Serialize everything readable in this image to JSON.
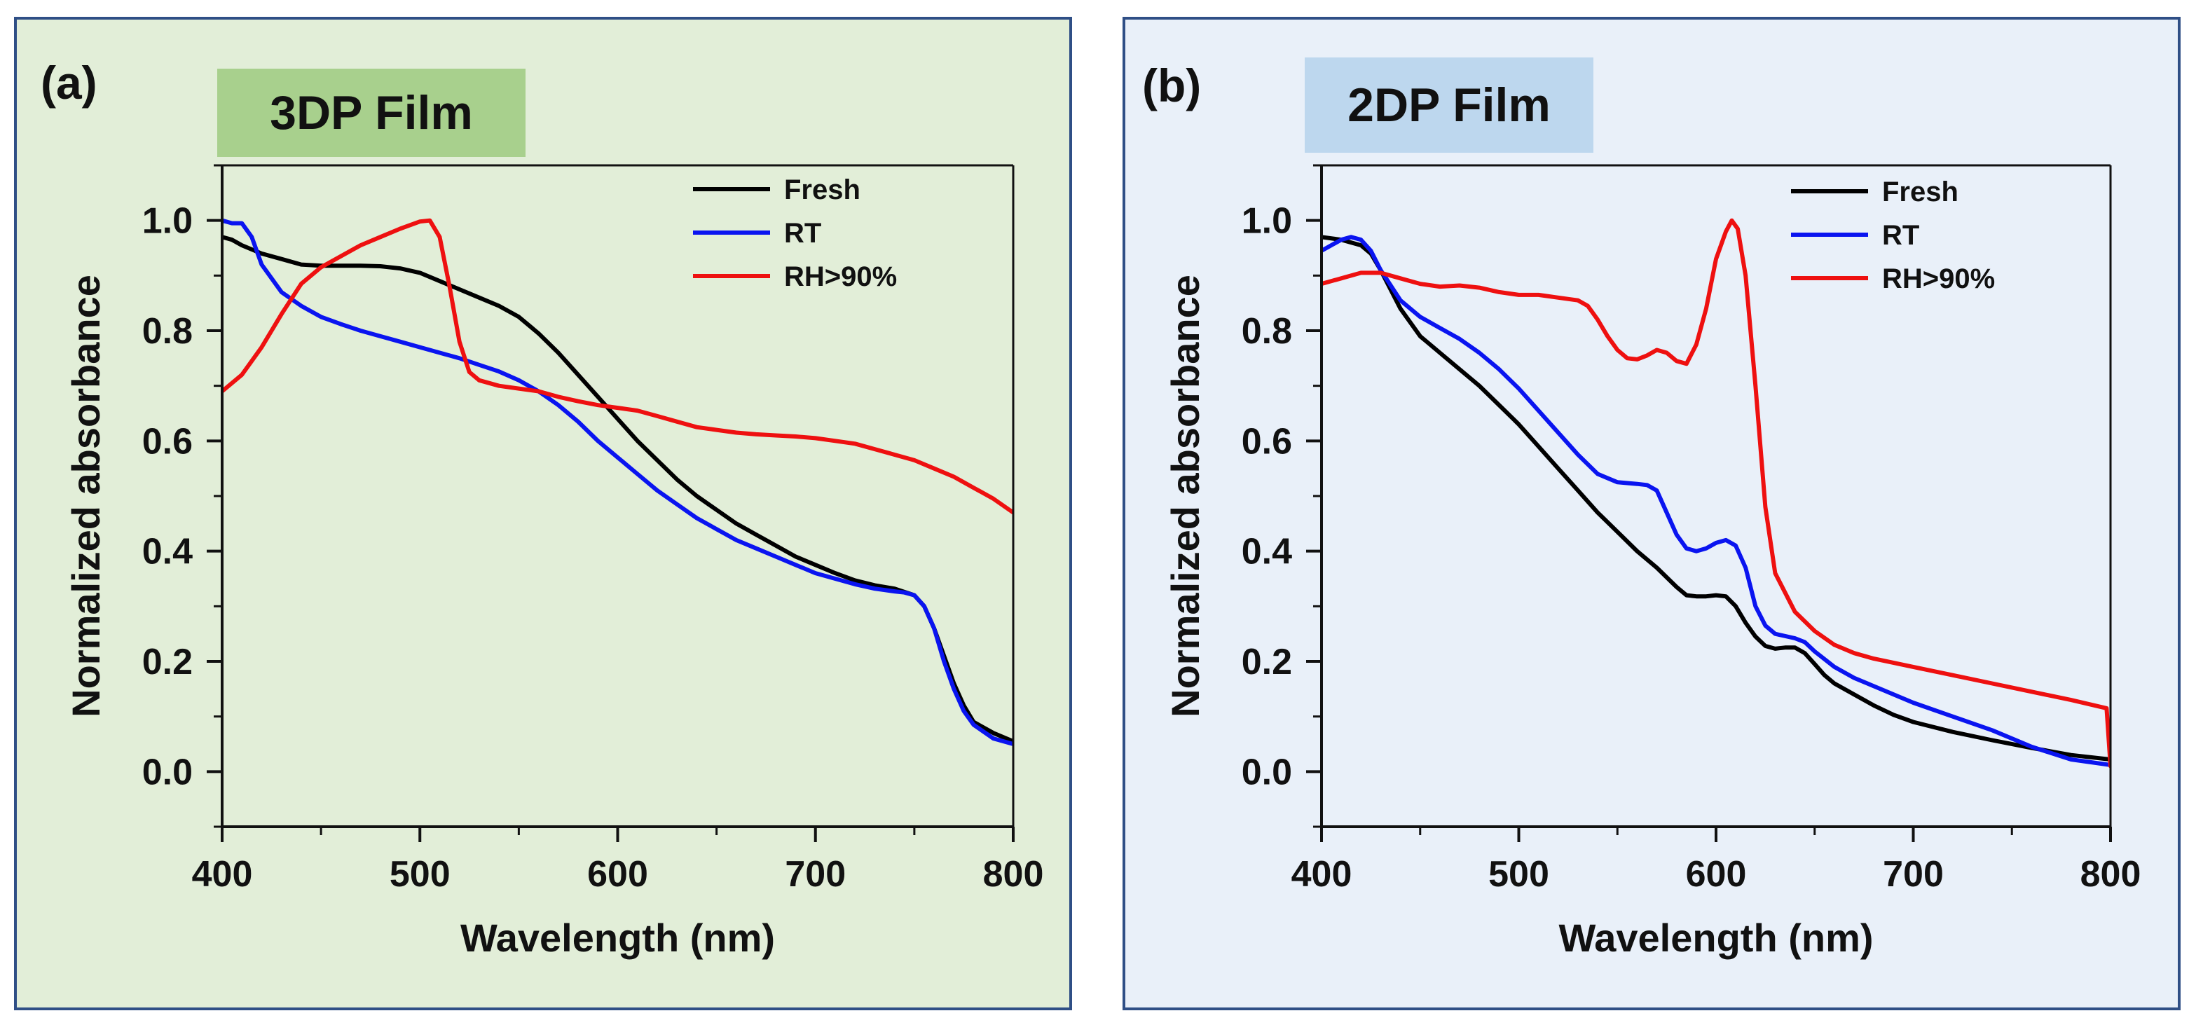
{
  "panels": [
    {
      "label": "(a)",
      "film": "3DP Film"
    },
    {
      "label": "(b)",
      "film": "2DP Film"
    }
  ],
  "colors": {
    "Fresh": "#000000",
    "RT": "#0a14f0",
    "RH>90%": "#ee1010"
  },
  "chart_data": [
    {
      "type": "line",
      "title": "3DP Film",
      "xlabel": "Wavelength (nm)",
      "ylabel": "Normalized absorbance",
      "xlim": [
        400,
        800
      ],
      "ylim": [
        -0.1,
        1.1
      ],
      "xticks": [
        400,
        500,
        600,
        700,
        800
      ],
      "xtick_labels": [
        "400",
        "500",
        "600",
        "700",
        "800"
      ],
      "yticks": [
        0.0,
        0.2,
        0.4,
        0.6,
        0.8,
        1.0
      ],
      "ytick_labels": [
        "0.0",
        "0.2",
        "0.4",
        "0.6",
        "0.8",
        "1.0"
      ],
      "legend_position": "top-right",
      "series": [
        {
          "name": "Fresh",
          "x": [
            400,
            405,
            410,
            420,
            430,
            440,
            450,
            460,
            470,
            480,
            490,
            500,
            510,
            520,
            530,
            540,
            550,
            560,
            570,
            580,
            590,
            600,
            610,
            620,
            630,
            640,
            650,
            660,
            670,
            680,
            690,
            700,
            710,
            720,
            730,
            740,
            750,
            755,
            760,
            765,
            770,
            775,
            780,
            790,
            800
          ],
          "y": [
            0.97,
            0.965,
            0.955,
            0.94,
            0.93,
            0.92,
            0.918,
            0.918,
            0.918,
            0.917,
            0.913,
            0.905,
            0.89,
            0.875,
            0.86,
            0.845,
            0.825,
            0.795,
            0.76,
            0.72,
            0.68,
            0.64,
            0.6,
            0.565,
            0.53,
            0.5,
            0.475,
            0.45,
            0.43,
            0.41,
            0.39,
            0.375,
            0.36,
            0.347,
            0.338,
            0.332,
            0.32,
            0.3,
            0.26,
            0.21,
            0.16,
            0.12,
            0.09,
            0.07,
            0.055
          ]
        },
        {
          "name": "RT",
          "x": [
            400,
            405,
            410,
            415,
            420,
            430,
            440,
            450,
            460,
            470,
            480,
            490,
            500,
            510,
            520,
            530,
            540,
            550,
            560,
            570,
            580,
            590,
            600,
            610,
            620,
            630,
            640,
            650,
            660,
            670,
            680,
            690,
            700,
            710,
            720,
            730,
            740,
            745,
            750,
            755,
            760,
            765,
            770,
            775,
            780,
            790,
            800
          ],
          "y": [
            1.0,
            0.995,
            0.995,
            0.97,
            0.92,
            0.87,
            0.845,
            0.825,
            0.812,
            0.8,
            0.79,
            0.78,
            0.77,
            0.76,
            0.75,
            0.738,
            0.726,
            0.71,
            0.69,
            0.665,
            0.635,
            0.6,
            0.57,
            0.54,
            0.51,
            0.485,
            0.46,
            0.44,
            0.42,
            0.405,
            0.39,
            0.375,
            0.36,
            0.35,
            0.34,
            0.332,
            0.327,
            0.325,
            0.32,
            0.3,
            0.26,
            0.2,
            0.15,
            0.11,
            0.085,
            0.06,
            0.05
          ]
        },
        {
          "name": "RH>90%",
          "x": [
            400,
            410,
            420,
            430,
            440,
            450,
            460,
            470,
            480,
            490,
            500,
            505,
            510,
            515,
            520,
            525,
            530,
            540,
            550,
            560,
            570,
            580,
            590,
            600,
            610,
            620,
            630,
            640,
            650,
            660,
            670,
            680,
            690,
            700,
            710,
            720,
            730,
            740,
            750,
            760,
            770,
            780,
            790,
            800
          ],
          "y": [
            0.69,
            0.72,
            0.77,
            0.83,
            0.885,
            0.915,
            0.935,
            0.955,
            0.97,
            0.985,
            0.998,
            1.0,
            0.97,
            0.88,
            0.78,
            0.725,
            0.71,
            0.7,
            0.695,
            0.69,
            0.68,
            0.672,
            0.665,
            0.66,
            0.655,
            0.645,
            0.635,
            0.625,
            0.62,
            0.615,
            0.612,
            0.61,
            0.608,
            0.605,
            0.6,
            0.595,
            0.585,
            0.575,
            0.565,
            0.55,
            0.535,
            0.515,
            0.495,
            0.47
          ]
        }
      ]
    },
    {
      "type": "line",
      "title": "2DP Film",
      "xlabel": "Wavelength (nm)",
      "ylabel": "Normalized absorbance",
      "xlim": [
        400,
        800
      ],
      "ylim": [
        -0.1,
        1.1
      ],
      "xticks": [
        400,
        500,
        600,
        700,
        800
      ],
      "xtick_labels": [
        "400",
        "500",
        "600",
        "700",
        "800"
      ],
      "yticks": [
        0.0,
        0.2,
        0.4,
        0.6,
        0.8,
        1.0
      ],
      "ytick_labels": [
        "0.0",
        "0.2",
        "0.4",
        "0.6",
        "0.8",
        "1.0"
      ],
      "legend_position": "top-right",
      "series": [
        {
          "name": "Fresh",
          "x": [
            400,
            410,
            420,
            425,
            430,
            440,
            450,
            460,
            470,
            480,
            490,
            500,
            510,
            520,
            530,
            540,
            550,
            560,
            570,
            580,
            585,
            590,
            595,
            600,
            605,
            610,
            615,
            620,
            625,
            630,
            635,
            640,
            645,
            650,
            655,
            660,
            670,
            680,
            690,
            700,
            720,
            740,
            760,
            780,
            800
          ],
          "y": [
            0.97,
            0.965,
            0.955,
            0.94,
            0.91,
            0.84,
            0.79,
            0.76,
            0.73,
            0.7,
            0.665,
            0.63,
            0.59,
            0.55,
            0.51,
            0.47,
            0.435,
            0.4,
            0.37,
            0.335,
            0.32,
            0.318,
            0.318,
            0.32,
            0.318,
            0.3,
            0.27,
            0.245,
            0.228,
            0.223,
            0.225,
            0.225,
            0.215,
            0.195,
            0.175,
            0.16,
            0.14,
            0.12,
            0.103,
            0.09,
            0.072,
            0.057,
            0.043,
            0.03,
            0.022
          ]
        },
        {
          "name": "RT",
          "x": [
            400,
            410,
            415,
            420,
            425,
            430,
            440,
            450,
            460,
            470,
            480,
            490,
            500,
            510,
            520,
            530,
            540,
            550,
            560,
            565,
            570,
            575,
            580,
            585,
            590,
            595,
            600,
            605,
            610,
            615,
            620,
            625,
            630,
            640,
            645,
            650,
            660,
            670,
            680,
            700,
            720,
            740,
            760,
            780,
            800
          ],
          "y": [
            0.945,
            0.965,
            0.97,
            0.965,
            0.945,
            0.91,
            0.855,
            0.825,
            0.805,
            0.785,
            0.76,
            0.73,
            0.695,
            0.655,
            0.615,
            0.575,
            0.54,
            0.525,
            0.522,
            0.52,
            0.51,
            0.47,
            0.43,
            0.405,
            0.4,
            0.405,
            0.415,
            0.42,
            0.41,
            0.37,
            0.3,
            0.265,
            0.25,
            0.242,
            0.235,
            0.218,
            0.19,
            0.17,
            0.155,
            0.125,
            0.1,
            0.075,
            0.045,
            0.022,
            0.012
          ]
        },
        {
          "name": "RH>90%",
          "x": [
            400,
            410,
            420,
            430,
            440,
            450,
            460,
            470,
            480,
            490,
            500,
            510,
            520,
            530,
            535,
            540,
            545,
            550,
            555,
            560,
            565,
            570,
            575,
            580,
            585,
            590,
            595,
            600,
            605,
            608,
            611,
            615,
            620,
            625,
            630,
            640,
            650,
            660,
            670,
            680,
            700,
            720,
            740,
            760,
            780,
            798,
            800
          ],
          "y": [
            0.885,
            0.895,
            0.905,
            0.905,
            0.895,
            0.885,
            0.88,
            0.882,
            0.878,
            0.87,
            0.865,
            0.865,
            0.86,
            0.855,
            0.845,
            0.82,
            0.79,
            0.765,
            0.75,
            0.748,
            0.755,
            0.765,
            0.76,
            0.745,
            0.74,
            0.775,
            0.84,
            0.93,
            0.98,
            1.0,
            0.985,
            0.9,
            0.7,
            0.48,
            0.36,
            0.29,
            0.255,
            0.23,
            0.215,
            0.205,
            0.19,
            0.175,
            0.16,
            0.145,
            0.13,
            0.115,
            0.01
          ]
        }
      ]
    }
  ]
}
